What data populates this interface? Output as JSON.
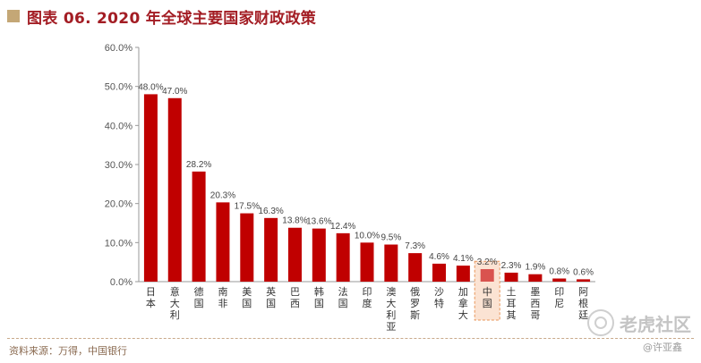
{
  "header": {
    "title": "图表 06. 2020 年全球主要国家财政政策"
  },
  "footer": {
    "source": "资料来源：万得，中国银行"
  },
  "watermark": {
    "brand": "老虎社区",
    "author": "@许亚鑫"
  },
  "colors": {
    "bar": "#c00000",
    "highlight_bar": "#d9534f",
    "highlight_bg": "#fbe3d3",
    "highlight_border": "#e8965a",
    "title": "#a31d24"
  },
  "chart_data": {
    "type": "bar",
    "title": "图表 06. 2020 年全球主要国家财政政策",
    "categories": [
      "日本",
      "意大利",
      "德国",
      "南非",
      "美国",
      "英国",
      "巴西",
      "韩国",
      "法国",
      "印度",
      "澳大利亚",
      "俄罗斯",
      "沙特",
      "加拿大",
      "中国",
      "土耳其",
      "墨西哥",
      "印尼",
      "阿根廷"
    ],
    "values": [
      48.0,
      47.0,
      28.2,
      20.3,
      17.5,
      16.3,
      13.8,
      13.6,
      12.4,
      10.0,
      9.5,
      7.3,
      4.6,
      4.1,
      3.2,
      2.3,
      1.9,
      0.8,
      0.6
    ],
    "data_labels": [
      "48.0%",
      "47.0%",
      "28.2%",
      "20.3%",
      "17.5%",
      "16.3%",
      "13.8%",
      "13.6%",
      "12.4%",
      "10.0%",
      "9.5%",
      "7.3%",
      "4.6%",
      "4.1%",
      "3.2%",
      "2.3%",
      "1.9%",
      "0.8%",
      "0.6%"
    ],
    "highlight": "中国",
    "ylim": [
      0,
      60
    ],
    "yticks": [
      0,
      10,
      20,
      30,
      40,
      50,
      60
    ],
    "ytick_labels": [
      "0.0%",
      "10.0%",
      "20.0%",
      "30.0%",
      "40.0%",
      "50.0%",
      "60.0%"
    ],
    "xlabel": "",
    "ylabel": "",
    "grid": false
  }
}
